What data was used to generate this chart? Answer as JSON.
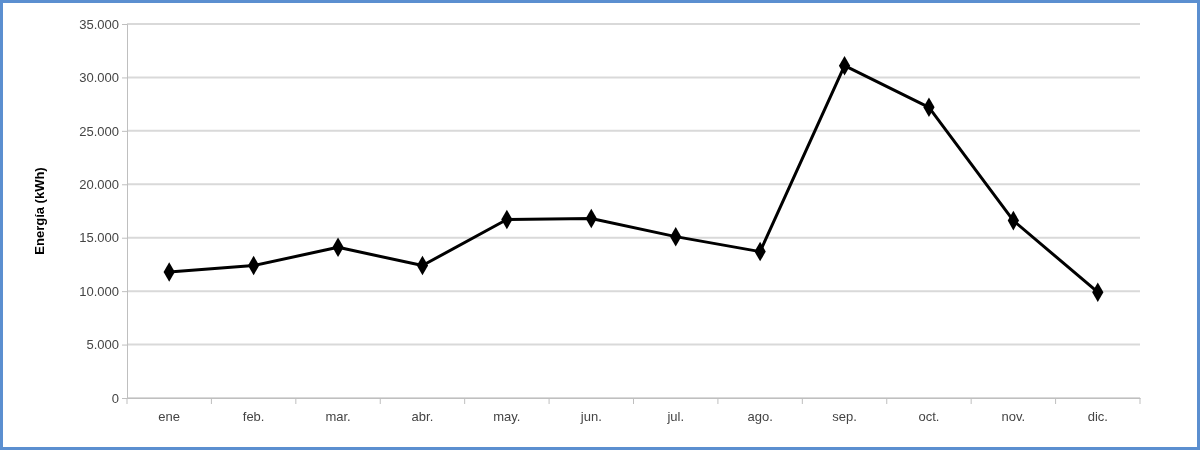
{
  "chart_data": {
    "type": "line",
    "ylabel": "Energía (kWh)",
    "categories": [
      "ene",
      "feb.",
      "mar.",
      "abr.",
      "may.",
      "jun.",
      "jul.",
      "ago.",
      "sep.",
      "oct.",
      "nov.",
      "dic."
    ],
    "series": [
      {
        "color": "#000000",
        "values": [
          11800,
          12400,
          14100,
          12400,
          16700,
          16800,
          15100,
          13700,
          31100,
          27200,
          16600,
          9900
        ]
      }
    ],
    "ylim": [
      0,
      35000
    ],
    "yticks": [
      {
        "value": 0,
        "label": "0"
      },
      {
        "value": 5000,
        "label": "5.000"
      },
      {
        "value": 10000,
        "label": "10.000"
      },
      {
        "value": 15000,
        "label": "15.000"
      },
      {
        "value": 20000,
        "label": "20.000"
      },
      {
        "value": 25000,
        "label": "25.000"
      },
      {
        "value": 30000,
        "label": "30.000"
      },
      {
        "value": 35000,
        "label": "35.000"
      }
    ],
    "grid": "y",
    "marker": "diamond",
    "line_style": "solid"
  }
}
